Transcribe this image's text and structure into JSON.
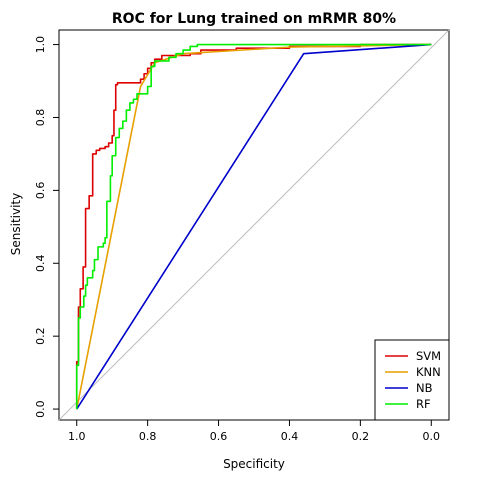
{
  "chart_data": {
    "type": "line",
    "title": "ROC for Lung trained on mRMR 80%",
    "xlabel": "Specificity",
    "ylabel": "Sensitivity",
    "x_axis_reversed": true,
    "xlim": [
      1.05,
      -0.05
    ],
    "ylim": [
      -0.03,
      1.04
    ],
    "x_ticks": [
      1.0,
      0.8,
      0.6,
      0.4,
      0.2,
      0.0
    ],
    "x_tick_labels": [
      "1.0",
      "0.8",
      "0.6",
      "0.4",
      "0.2",
      "0.0"
    ],
    "y_ticks": [
      0.0,
      0.2,
      0.4,
      0.6,
      0.8,
      1.0
    ],
    "y_tick_labels": [
      "0.0",
      "0.2",
      "0.4",
      "0.6",
      "0.8",
      "1.0"
    ],
    "grid": false,
    "diagonal_reference_color": "#bebebe",
    "legend_position": "bottom-right",
    "series": [
      {
        "name": "SVM",
        "color": "#dd0000",
        "points": [
          [
            1.0,
            0.0
          ],
          [
            1.0,
            0.13
          ],
          [
            0.995,
            0.13
          ],
          [
            0.995,
            0.28
          ],
          [
            0.99,
            0.28
          ],
          [
            0.99,
            0.33
          ],
          [
            0.982,
            0.33
          ],
          [
            0.982,
            0.39
          ],
          [
            0.975,
            0.39
          ],
          [
            0.975,
            0.55
          ],
          [
            0.965,
            0.55
          ],
          [
            0.965,
            0.585
          ],
          [
            0.955,
            0.585
          ],
          [
            0.955,
            0.7
          ],
          [
            0.945,
            0.7
          ],
          [
            0.945,
            0.71
          ],
          [
            0.935,
            0.71
          ],
          [
            0.935,
            0.715
          ],
          [
            0.92,
            0.715
          ],
          [
            0.92,
            0.72
          ],
          [
            0.91,
            0.72
          ],
          [
            0.91,
            0.73
          ],
          [
            0.9,
            0.73
          ],
          [
            0.9,
            0.75
          ],
          [
            0.895,
            0.75
          ],
          [
            0.895,
            0.82
          ],
          [
            0.89,
            0.82
          ],
          [
            0.89,
            0.89
          ],
          [
            0.885,
            0.89
          ],
          [
            0.885,
            0.895
          ],
          [
            0.82,
            0.895
          ],
          [
            0.82,
            0.905
          ],
          [
            0.81,
            0.905
          ],
          [
            0.81,
            0.92
          ],
          [
            0.8,
            0.92
          ],
          [
            0.8,
            0.935
          ],
          [
            0.79,
            0.935
          ],
          [
            0.79,
            0.95
          ],
          [
            0.78,
            0.95
          ],
          [
            0.78,
            0.96
          ],
          [
            0.76,
            0.96
          ],
          [
            0.76,
            0.97
          ],
          [
            0.68,
            0.97
          ],
          [
            0.68,
            0.975
          ],
          [
            0.65,
            0.975
          ],
          [
            0.65,
            0.985
          ],
          [
            0.55,
            0.985
          ],
          [
            0.55,
            0.99
          ],
          [
            0.4,
            0.99
          ],
          [
            0.4,
            0.995
          ],
          [
            0.2,
            0.995
          ],
          [
            0.2,
            1.0
          ],
          [
            0.0,
            1.0
          ]
        ]
      },
      {
        "name": "KNN",
        "color": "#e8a000",
        "points": [
          [
            1.0,
            0.0
          ],
          [
            0.82,
            0.885
          ],
          [
            0.78,
            0.95
          ],
          [
            0.7,
            0.975
          ],
          [
            0.4,
            0.993
          ],
          [
            0.0,
            1.0
          ]
        ]
      },
      {
        "name": "NB",
        "color": "#0000cc",
        "points": [
          [
            1.0,
            0.0
          ],
          [
            0.36,
            0.975
          ],
          [
            0.0,
            1.0
          ]
        ]
      },
      {
        "name": "RF",
        "color": "#00ee00",
        "points": [
          [
            1.0,
            0.0
          ],
          [
            1.0,
            0.12
          ],
          [
            0.995,
            0.12
          ],
          [
            0.995,
            0.25
          ],
          [
            0.99,
            0.25
          ],
          [
            0.99,
            0.28
          ],
          [
            0.98,
            0.28
          ],
          [
            0.98,
            0.31
          ],
          [
            0.975,
            0.31
          ],
          [
            0.975,
            0.34
          ],
          [
            0.97,
            0.34
          ],
          [
            0.97,
            0.36
          ],
          [
            0.955,
            0.36
          ],
          [
            0.955,
            0.38
          ],
          [
            0.95,
            0.38
          ],
          [
            0.95,
            0.41
          ],
          [
            0.94,
            0.41
          ],
          [
            0.94,
            0.445
          ],
          [
            0.925,
            0.445
          ],
          [
            0.925,
            0.455
          ],
          [
            0.92,
            0.455
          ],
          [
            0.92,
            0.47
          ],
          [
            0.915,
            0.47
          ],
          [
            0.915,
            0.57
          ],
          [
            0.905,
            0.57
          ],
          [
            0.905,
            0.64
          ],
          [
            0.9,
            0.64
          ],
          [
            0.9,
            0.695
          ],
          [
            0.89,
            0.695
          ],
          [
            0.89,
            0.745
          ],
          [
            0.88,
            0.745
          ],
          [
            0.88,
            0.77
          ],
          [
            0.87,
            0.77
          ],
          [
            0.87,
            0.79
          ],
          [
            0.86,
            0.79
          ],
          [
            0.86,
            0.82
          ],
          [
            0.85,
            0.82
          ],
          [
            0.85,
            0.84
          ],
          [
            0.84,
            0.84
          ],
          [
            0.84,
            0.85
          ],
          [
            0.83,
            0.85
          ],
          [
            0.83,
            0.865
          ],
          [
            0.8,
            0.865
          ],
          [
            0.8,
            0.885
          ],
          [
            0.79,
            0.885
          ],
          [
            0.79,
            0.94
          ],
          [
            0.78,
            0.94
          ],
          [
            0.78,
            0.955
          ],
          [
            0.74,
            0.955
          ],
          [
            0.74,
            0.965
          ],
          [
            0.72,
            0.965
          ],
          [
            0.72,
            0.975
          ],
          [
            0.7,
            0.975
          ],
          [
            0.7,
            0.985
          ],
          [
            0.68,
            0.985
          ],
          [
            0.68,
            0.995
          ],
          [
            0.66,
            0.995
          ],
          [
            0.66,
            1.0
          ],
          [
            0.0,
            1.0
          ]
        ]
      }
    ]
  }
}
